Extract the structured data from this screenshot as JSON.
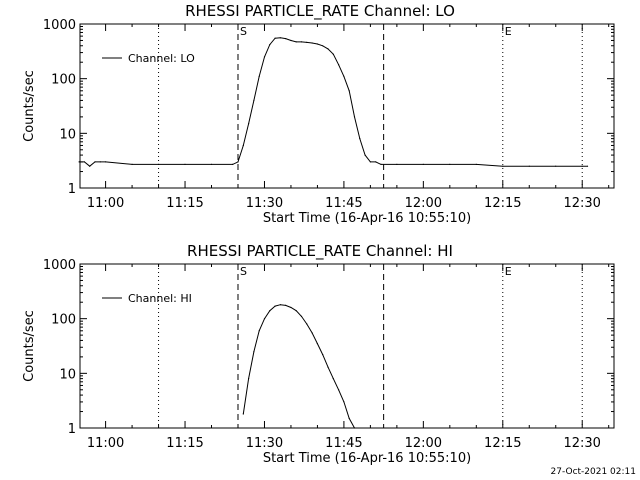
{
  "chart_data": [
    {
      "type": "line",
      "title": "RHESSI PARTICLE_RATE Channel: LO",
      "xlabel": "Start Time (16-Apr-16 10:55:10)",
      "ylabel": "Counts/sec",
      "y_scale": "log",
      "ylim": [
        1,
        1000
      ],
      "y_ticks": [
        "1000",
        "100",
        "10",
        "1"
      ],
      "x_ticks": [
        "11:00",
        "11:15",
        "11:30",
        "11:45",
        "12:00",
        "12:15",
        "12:30"
      ],
      "legend": "Channel: LO",
      "legend_position": "top-left",
      "annotations": [
        {
          "time": "11:25",
          "label": "S",
          "style": "dashed"
        },
        {
          "time": "11:52.5",
          "label": "",
          "style": "dashed"
        },
        {
          "time": "11:10",
          "label": "",
          "style": "dotted"
        },
        {
          "time": "12:15",
          "label": "E",
          "style": "dotted"
        },
        {
          "time": "12:30",
          "label": "",
          "style": "dotted"
        }
      ],
      "series": [
        {
          "name": "Channel: LO",
          "x": [
            "10:55",
            "10:56",
            "10:57",
            "10:58",
            "10:59",
            "11:00",
            "11:05",
            "11:10",
            "11:15",
            "11:20",
            "11:24",
            "11:25",
            "11:26",
            "11:27",
            "11:28",
            "11:29",
            "11:30",
            "11:31",
            "11:32",
            "11:33",
            "11:34",
            "11:35",
            "11:36",
            "11:37",
            "11:38",
            "11:39",
            "11:40",
            "11:41",
            "11:42",
            "11:43",
            "11:44",
            "11:45",
            "11:46",
            "11:47",
            "11:48",
            "11:49",
            "11:50",
            "11:51",
            "11:52",
            "11:55",
            "12:00",
            "12:05",
            "12:10",
            "12:15",
            "12:20",
            "12:25",
            "12:30",
            "12:31"
          ],
          "y": [
            3,
            3,
            2.5,
            3,
            3,
            3,
            2.7,
            2.7,
            2.7,
            2.7,
            2.7,
            3,
            6,
            15,
            40,
            110,
            250,
            420,
            550,
            560,
            540,
            500,
            470,
            470,
            460,
            450,
            430,
            400,
            350,
            280,
            180,
            110,
            60,
            20,
            8,
            4,
            3,
            3,
            2.7,
            2.7,
            2.7,
            2.7,
            2.7,
            2.5,
            2.5,
            2.5,
            2.5,
            2.5
          ]
        }
      ]
    },
    {
      "type": "line",
      "title": "RHESSI PARTICLE_RATE Channel: HI",
      "xlabel": "Start Time (16-Apr-16 10:55:10)",
      "ylabel": "Counts/sec",
      "y_scale": "log",
      "ylim": [
        1,
        1000
      ],
      "y_ticks": [
        "1000",
        "100",
        "10",
        "1"
      ],
      "x_ticks": [
        "11:00",
        "11:15",
        "11:30",
        "11:45",
        "12:00",
        "12:15",
        "12:30"
      ],
      "legend": "Channel: HI",
      "legend_position": "top-left",
      "annotations": [
        {
          "time": "11:25",
          "label": "S",
          "style": "dashed"
        },
        {
          "time": "11:52.5",
          "label": "",
          "style": "dashed"
        },
        {
          "time": "11:10",
          "label": "",
          "style": "dotted"
        },
        {
          "time": "12:15",
          "label": "E",
          "style": "dotted"
        },
        {
          "time": "12:30",
          "label": "",
          "style": "dotted"
        }
      ],
      "series": [
        {
          "name": "Channel: HI",
          "x": [
            "11:26",
            "11:27",
            "11:28",
            "11:29",
            "11:30",
            "11:31",
            "11:32",
            "11:33",
            "11:34",
            "11:35",
            "11:36",
            "11:37",
            "11:38",
            "11:39",
            "11:40",
            "11:41",
            "11:42",
            "11:43",
            "11:44",
            "11:45",
            "11:46",
            "11:47"
          ],
          "y": [
            1.8,
            8,
            25,
            60,
            100,
            140,
            170,
            180,
            175,
            160,
            140,
            110,
            80,
            55,
            35,
            22,
            13,
            8,
            5,
            3,
            1.5,
            1
          ]
        }
      ]
    }
  ],
  "footer": {
    "timestamp": "27-Oct-2021 02:11"
  }
}
